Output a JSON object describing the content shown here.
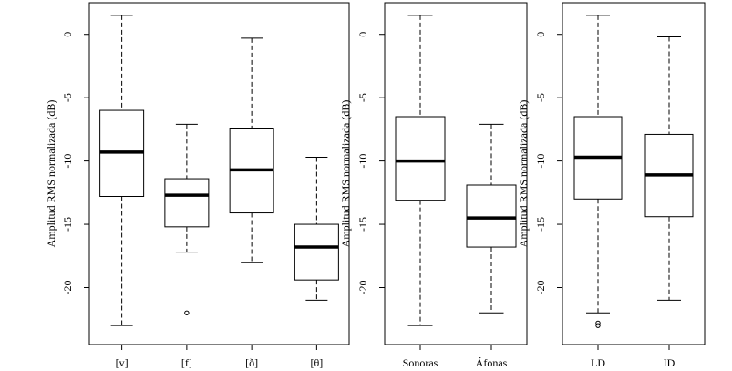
{
  "chart_data": [
    {
      "type": "boxplot",
      "ylabel": "Amplitud RMS normalizada (dB)",
      "ylim": [
        -24.5,
        2.5
      ],
      "yticks": [
        0,
        -5,
        -10,
        -15,
        -20
      ],
      "categories": [
        "[v]",
        "[f]",
        "[ð]",
        "[θ]"
      ],
      "boxes": [
        {
          "label": "[v]",
          "min": -23.0,
          "q1": -12.8,
          "median": -9.3,
          "q3": -6.0,
          "max": 1.5,
          "outliers": []
        },
        {
          "label": "[f]",
          "min": -17.2,
          "q1": -15.2,
          "median": -12.7,
          "q3": -11.4,
          "max": -7.1,
          "outliers": [
            -22.0
          ]
        },
        {
          "label": "[ð]",
          "min": -18.0,
          "q1": -14.1,
          "median": -10.7,
          "q3": -7.4,
          "max": -0.3,
          "outliers": []
        },
        {
          "label": "[θ]",
          "min": -21.0,
          "q1": -19.4,
          "median": -16.8,
          "q3": -15.0,
          "max": -9.7,
          "outliers": []
        }
      ]
    },
    {
      "type": "boxplot",
      "ylabel": "Amplitud RMS normalizada (dB)",
      "ylim": [
        -24.5,
        2.5
      ],
      "yticks": [
        0,
        -5,
        -10,
        -15,
        -20
      ],
      "categories": [
        "Sonoras",
        "Áfonas"
      ],
      "boxes": [
        {
          "label": "Sonoras",
          "min": -23.0,
          "q1": -13.1,
          "median": -10.0,
          "q3": -6.5,
          "max": 1.5,
          "outliers": []
        },
        {
          "label": "Áfonas",
          "min": -22.0,
          "q1": -16.8,
          "median": -14.5,
          "q3": -11.9,
          "max": -7.1,
          "outliers": []
        }
      ]
    },
    {
      "type": "boxplot",
      "ylabel": "Amplitud RMS normalizada (dB)",
      "ylim": [
        -24.5,
        2.5
      ],
      "yticks": [
        0,
        -5,
        -10,
        -15,
        -20
      ],
      "categories": [
        "LD",
        "ID"
      ],
      "boxes": [
        {
          "label": "LD",
          "min": -22.0,
          "q1": -13.0,
          "median": -9.7,
          "q3": -6.5,
          "max": 1.5,
          "outliers": [
            -22.8,
            -23.0
          ]
        },
        {
          "label": "ID",
          "min": -21.0,
          "q1": -14.4,
          "median": -11.1,
          "q3": -7.9,
          "max": -0.2,
          "outliers": []
        }
      ]
    }
  ]
}
